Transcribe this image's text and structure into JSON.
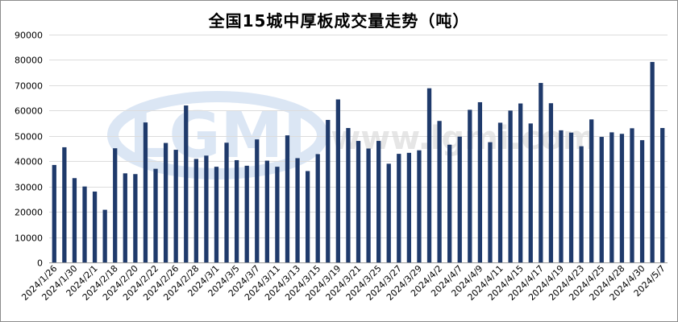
{
  "chart_data": {
    "type": "bar",
    "title": "全国15城中厚板成交量走势（吨）",
    "xlabel": "",
    "ylabel": "",
    "ylim": [
      0,
      90000
    ],
    "yticks": [
      0,
      10000,
      20000,
      30000,
      40000,
      50000,
      60000,
      70000,
      80000,
      90000
    ],
    "grid": true,
    "legend": "none",
    "color": "#1f3a6b",
    "categories": [
      "2024/1/26",
      "2024/1/29",
      "2024/1/30",
      "2024/1/31",
      "2024/2/1",
      "2024/2/2",
      "2024/2/18",
      "2024/2/19",
      "2024/2/20",
      "2024/2/21",
      "2024/2/22",
      "2024/2/23",
      "2024/2/26",
      "2024/2/27",
      "2024/2/28",
      "2024/2/29",
      "2024/3/1",
      "2024/3/4",
      "2024/3/5",
      "2024/3/6",
      "2024/3/7",
      "2024/3/8",
      "2024/3/11",
      "2024/3/12",
      "2024/3/13",
      "2024/3/14",
      "2024/3/15",
      "2024/3/18",
      "2024/3/19",
      "2024/3/20",
      "2024/3/21",
      "2024/3/22",
      "2024/3/25",
      "2024/3/26",
      "2024/3/27",
      "2024/3/28",
      "2024/3/29",
      "2024/4/1",
      "2024/4/2",
      "2024/4/3",
      "2024/4/7",
      "2024/4/8",
      "2024/4/9",
      "2024/4/10",
      "2024/4/11",
      "2024/4/12",
      "2024/4/15",
      "2024/4/16",
      "2024/4/17",
      "2024/4/18",
      "2024/4/19",
      "2024/4/22",
      "2024/4/23",
      "2024/4/24",
      "2024/4/25",
      "2024/4/26",
      "2024/4/28",
      "2024/4/29",
      "2024/4/30",
      "2024/5/6",
      "2024/5/7"
    ],
    "shown_x_labels": [
      "2024/1/26",
      "2024/1/30",
      "2024/2/1",
      "2024/2/18",
      "2024/2/20",
      "2024/2/22",
      "2024/2/26",
      "2024/2/28",
      "2024/3/1",
      "2024/3/5",
      "2024/3/7",
      "2024/3/11",
      "2024/3/13",
      "2024/3/15",
      "2024/3/19",
      "2024/3/21",
      "2024/3/25",
      "2024/3/27",
      "2024/3/29",
      "2024/4/2",
      "2024/4/7",
      "2024/4/9",
      "2024/4/11",
      "2024/4/15",
      "2024/4/17",
      "2024/4/19",
      "2024/4/23",
      "2024/4/25",
      "2024/4/28",
      "2024/4/30",
      "2024/5/7"
    ],
    "values": [
      38500,
      45500,
      33300,
      30000,
      28000,
      20800,
      45100,
      35200,
      34900,
      55300,
      37000,
      47200,
      44500,
      62000,
      40900,
      42200,
      37800,
      47300,
      40400,
      38200,
      48600,
      40200,
      37800,
      50200,
      41200,
      36100,
      42800,
      56300,
      64400,
      53100,
      48000,
      45000,
      48000,
      39000,
      42900,
      43300,
      44300,
      68800,
      55900,
      46500,
      49700,
      60300,
      63300,
      47500,
      55200,
      60000,
      62800,
      54900,
      70900,
      62900,
      52200,
      51300,
      45900,
      56500,
      49600,
      51400,
      50800,
      53000,
      48300,
      79200,
      53100
    ],
    "watermark": {
      "logo": "LGMI",
      "url": "www.lgmi.com"
    }
  }
}
